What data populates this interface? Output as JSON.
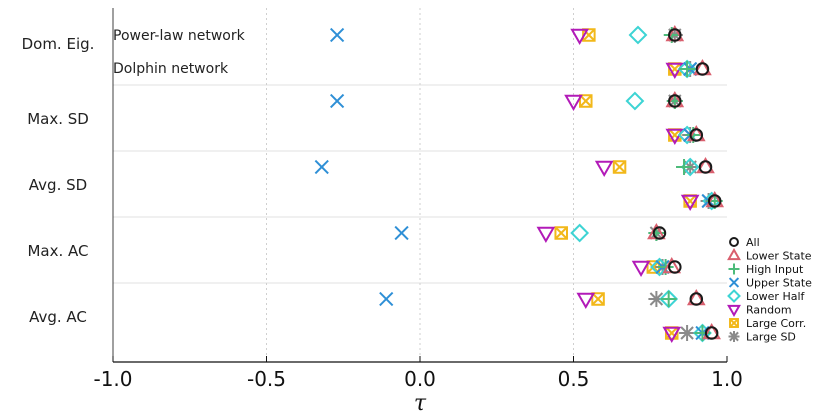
{
  "chart_data": {
    "type": "scatter",
    "xlabel": "τ",
    "xlim": [
      -1.0,
      1.0
    ],
    "xticks": [
      "-1.0",
      "-0.5",
      "0.0",
      "0.5",
      "1.0"
    ],
    "grid": "vertical dotted",
    "legend_position": "right",
    "categories": [
      "Dom. Eig.",
      "Max. SD",
      "Avg. SD",
      "Max. AC",
      "Avg. AC"
    ],
    "networks": [
      "Power-law network",
      "Dolphin network"
    ],
    "series": [
      {
        "name": "All",
        "marker": "circle",
        "color": "#1a1a1a",
        "powerlaw": [
          0.83,
          0.83,
          0.93,
          0.78,
          0.9
        ],
        "dolphin": [
          0.92,
          0.9,
          0.96,
          0.83,
          0.95
        ]
      },
      {
        "name": "Lower State",
        "marker": "triangle-up",
        "color": "#d95f6e",
        "powerlaw": [
          0.83,
          0.83,
          0.93,
          0.77,
          0.9
        ],
        "dolphin": [
          0.92,
          0.9,
          0.96,
          0.82,
          0.95
        ]
      },
      {
        "name": "High Input",
        "marker": "plus",
        "color": "#4dbb7a",
        "powerlaw": [
          0.82,
          0.83,
          0.86,
          0.77,
          0.81
        ],
        "dolphin": [
          0.87,
          0.89,
          0.96,
          0.8,
          0.92
        ]
      },
      {
        "name": "Upper State",
        "marker": "x",
        "color": "#2e8fd6",
        "powerlaw": [
          -0.27,
          -0.27,
          -0.32,
          -0.06,
          -0.11
        ],
        "dolphin": [
          0.88,
          0.88,
          0.94,
          0.79,
          0.92
        ]
      },
      {
        "name": "Lower Half",
        "marker": "diamond",
        "color": "#3dd4d4",
        "powerlaw": [
          0.71,
          0.7,
          0.88,
          0.52,
          0.81
        ],
        "dolphin": [
          0.87,
          0.87,
          0.95,
          0.78,
          0.92
        ]
      },
      {
        "name": "Random",
        "marker": "triangle-down",
        "color": "#b21ab8",
        "powerlaw": [
          0.52,
          0.5,
          0.6,
          0.41,
          0.54
        ],
        "dolphin": [
          0.83,
          0.83,
          0.88,
          0.72,
          0.82
        ]
      },
      {
        "name": "Large Corr.",
        "marker": "box-x",
        "color": "#f2b81a",
        "powerlaw": [
          0.55,
          0.54,
          0.65,
          0.46,
          0.58
        ],
        "dolphin": [
          0.83,
          0.83,
          0.88,
          0.76,
          0.82
        ]
      },
      {
        "name": "Large SD",
        "marker": "asterisk",
        "color": "#8a8a8a",
        "powerlaw": [
          0.83,
          0.83,
          0.88,
          0.77,
          0.77
        ],
        "dolphin": [
          0.88,
          0.88,
          0.94,
          0.79,
          0.87
        ]
      }
    ]
  }
}
